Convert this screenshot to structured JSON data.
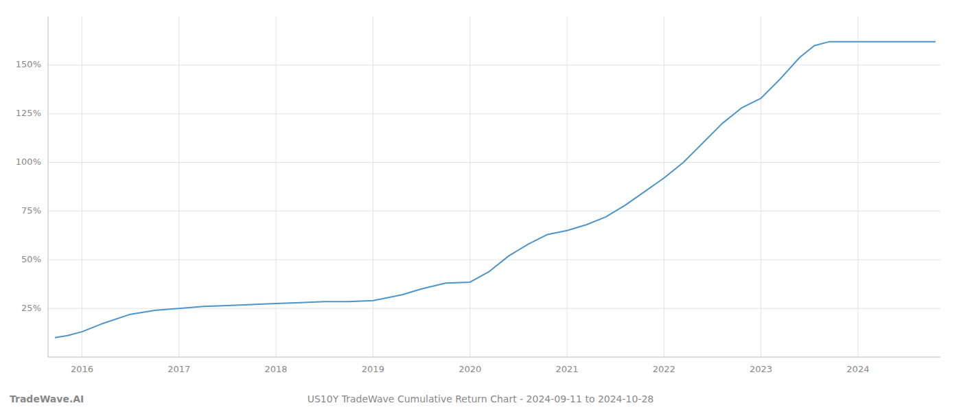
{
  "chart_data": {
    "type": "line",
    "title": "US10Y TradeWave Cumulative Return Chart - 2024-09-11 to 2024-10-28",
    "annotations": [
      "TradeWave.AI"
    ],
    "color": "#4d94c8",
    "grid": true,
    "x": [
      2015.72,
      2015.85,
      2016.0,
      2016.2,
      2016.5,
      2016.75,
      2017.0,
      2017.25,
      2017.5,
      2017.75,
      2018.0,
      2018.25,
      2018.5,
      2018.75,
      2019.0,
      2019.1,
      2019.3,
      2019.5,
      2019.75,
      2020.0,
      2020.2,
      2020.4,
      2020.6,
      2020.8,
      2021.0,
      2021.2,
      2021.4,
      2021.6,
      2021.8,
      2022.0,
      2022.2,
      2022.4,
      2022.6,
      2022.8,
      2023.0,
      2023.2,
      2023.4,
      2023.55,
      2023.7,
      2024.0,
      2024.3,
      2024.6,
      2024.8
    ],
    "values": [
      10,
      11,
      13,
      17,
      22,
      24,
      25,
      26,
      26.5,
      27,
      27.5,
      28,
      28.5,
      28.5,
      29,
      30,
      32,
      35,
      38,
      38.5,
      44,
      52,
      58,
      63,
      65,
      68,
      72,
      78,
      85,
      92,
      100,
      110,
      120,
      128,
      133,
      143,
      154,
      160,
      162,
      162,
      162,
      162,
      162
    ],
    "xlim": [
      2015.65,
      2024.85
    ],
    "xticks": [
      2016,
      2017,
      2018,
      2019,
      2020,
      2021,
      2022,
      2023,
      2024
    ],
    "ylim": [
      0,
      175
    ],
    "yticks": [
      {
        "value": 25,
        "label": "25%"
      },
      {
        "value": 50,
        "label": "50%"
      },
      {
        "value": 75,
        "label": "75%"
      },
      {
        "value": 100,
        "label": "100%"
      },
      {
        "value": 125,
        "label": "125%"
      },
      {
        "value": 150,
        "label": "150%"
      }
    ]
  }
}
